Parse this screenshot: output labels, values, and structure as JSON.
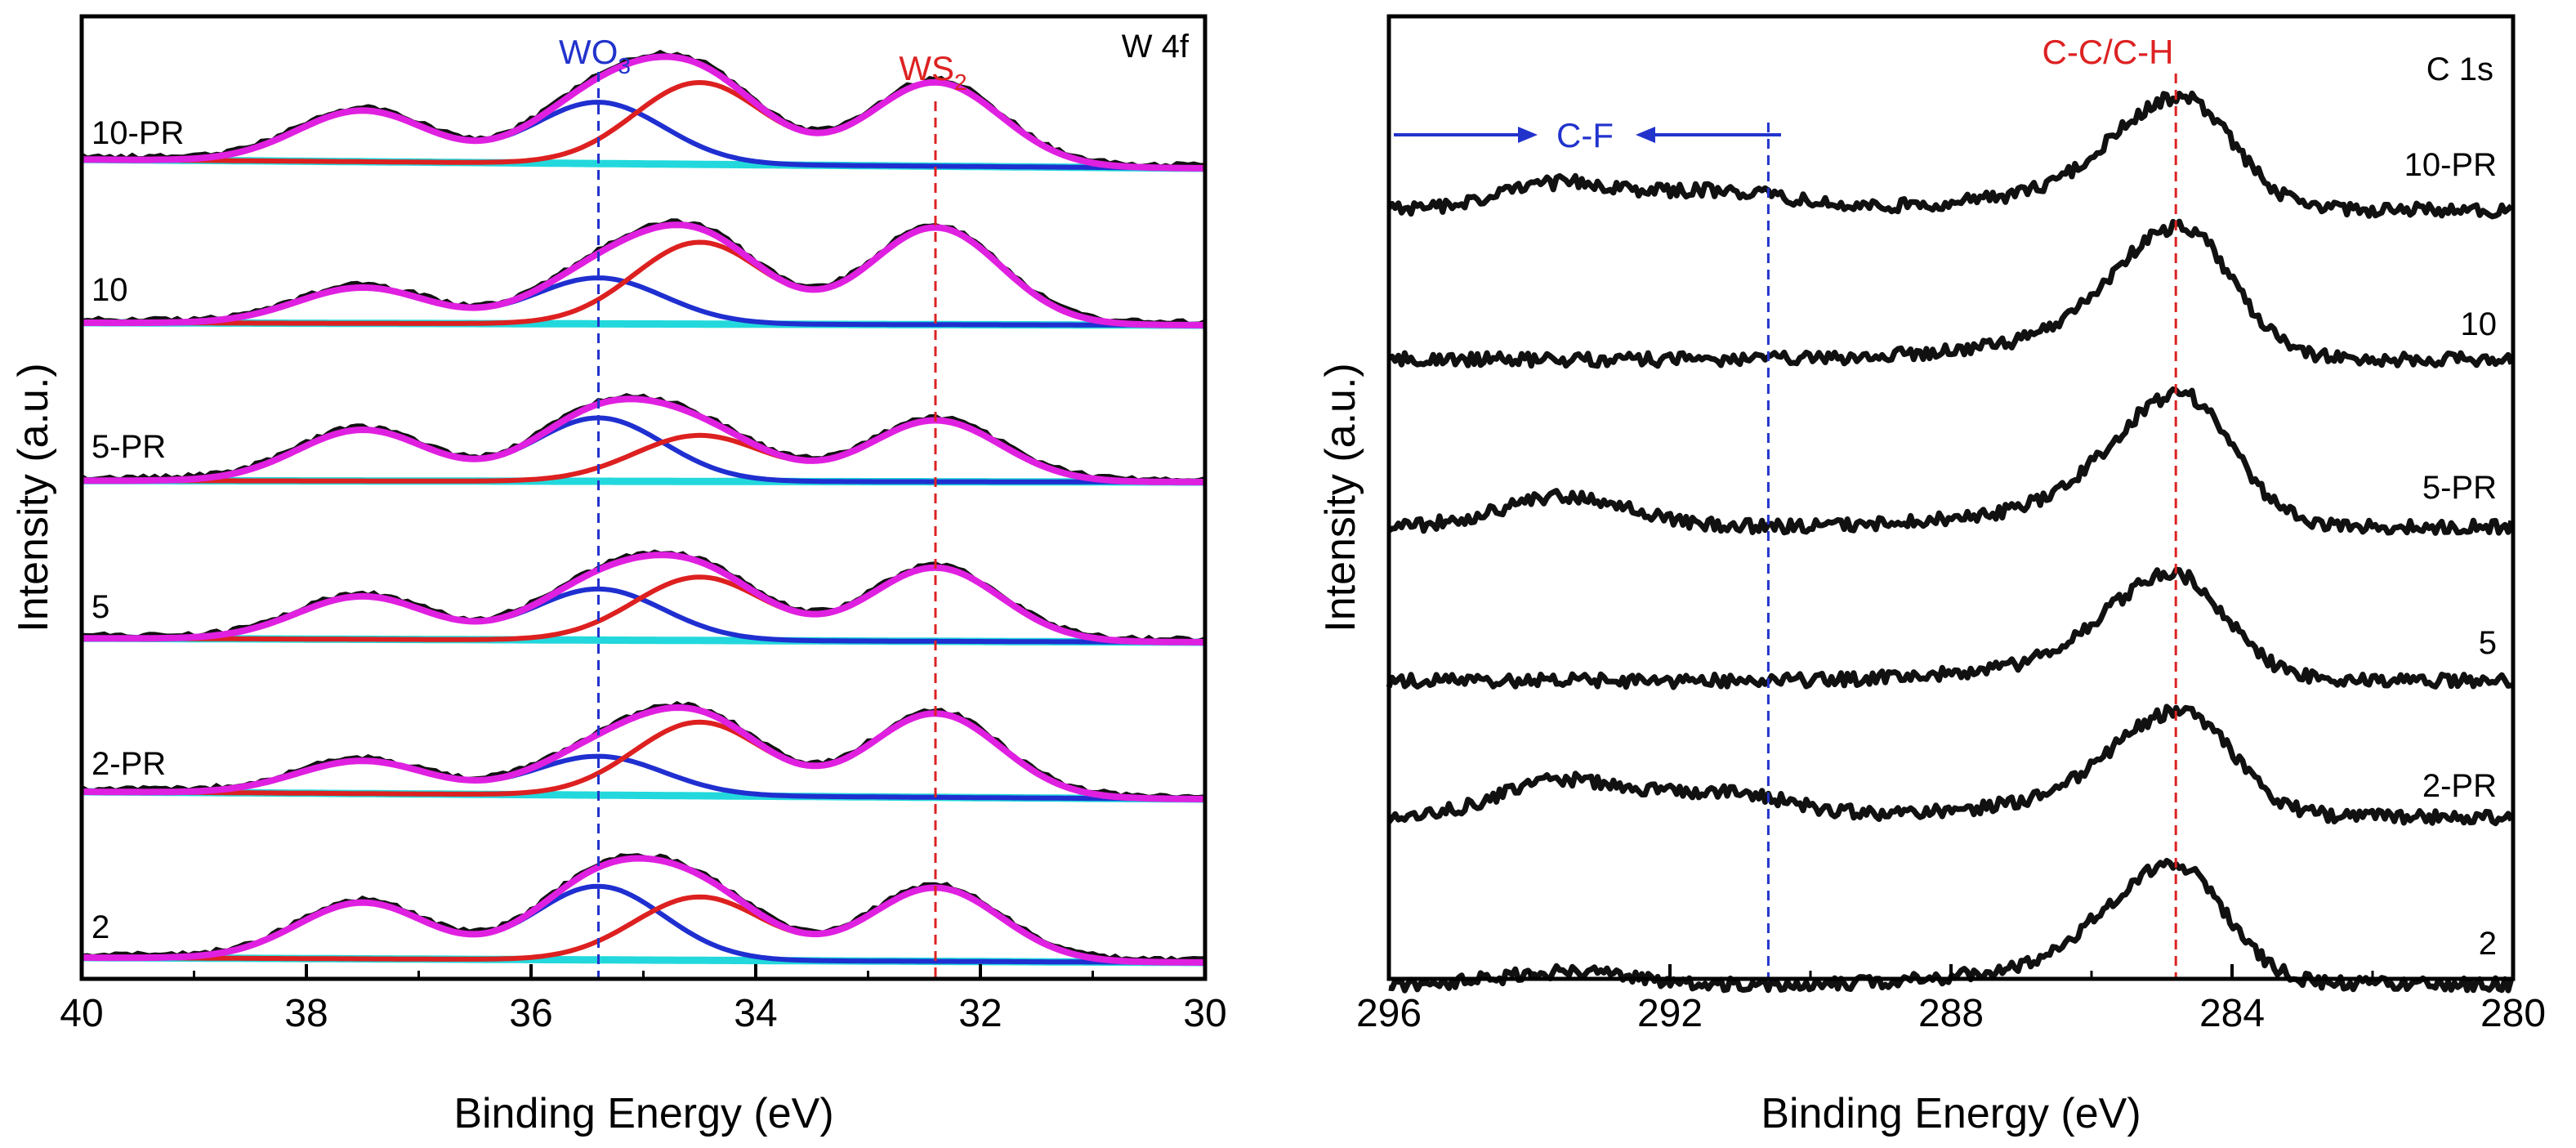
{
  "colors": {
    "spectrum": "#111111",
    "envelope": "#e020e0",
    "wo3_component": "#1f2fd0",
    "ws2_component": "#dd2020",
    "background": "#22d8dc",
    "wo3_marker": "#2233cc",
    "ws2_marker": "#dd2222",
    "cf_marker": "#2233cc"
  },
  "chart_data": [
    {
      "id": "w4f",
      "type": "line",
      "subtype": "xps-stacked-fits",
      "panel_label": "W 4f",
      "xlabel": "Binding Energy (eV)",
      "ylabel": "Intensity (a.u.)",
      "xlim": [
        40,
        30
      ],
      "x_reversed": true,
      "xticks": [
        40,
        38,
        36,
        34,
        32,
        30
      ],
      "yticks": false,
      "grid": false,
      "annotations": [
        {
          "label_main": "WO",
          "label_sub": "3",
          "energy_ev": 35.4,
          "color_key": "wo3_marker"
        },
        {
          "label_main": "WS",
          "label_sub": "2",
          "energy_ev": 32.4,
          "color_key": "ws2_marker"
        }
      ],
      "series": [
        {
          "name": "10-PR",
          "wo3_peaks": [
            {
              "center": 37.5,
              "height": 0.5
            },
            {
              "center": 35.4,
              "height": 0.6
            }
          ],
          "ws2_peaks": [
            {
              "center": 34.5,
              "height": 0.8
            },
            {
              "center": 32.4,
              "height": 0.82
            }
          ],
          "background_rise": 0.18
        },
        {
          "name": "10",
          "wo3_peaks": [
            {
              "center": 37.5,
              "height": 0.35
            },
            {
              "center": 35.4,
              "height": 0.45
            }
          ],
          "ws2_peaks": [
            {
              "center": 34.5,
              "height": 0.8
            },
            {
              "center": 32.4,
              "height": 0.95
            }
          ],
          "background_rise": 0.05
        },
        {
          "name": "5-PR",
          "wo3_peaks": [
            {
              "center": 37.5,
              "height": 0.5
            },
            {
              "center": 35.4,
              "height": 0.62
            }
          ],
          "ws2_peaks": [
            {
              "center": 34.5,
              "height": 0.45
            },
            {
              "center": 32.4,
              "height": 0.6
            }
          ],
          "background_rise": 0.03
        },
        {
          "name": "5",
          "wo3_peaks": [
            {
              "center": 37.5,
              "height": 0.42
            },
            {
              "center": 35.4,
              "height": 0.5
            }
          ],
          "ws2_peaks": [
            {
              "center": 34.5,
              "height": 0.62
            },
            {
              "center": 32.4,
              "height": 0.72
            }
          ],
          "background_rise": 0.08
        },
        {
          "name": "2-PR",
          "wo3_peaks": [
            {
              "center": 37.5,
              "height": 0.32
            },
            {
              "center": 35.4,
              "height": 0.38
            }
          ],
          "ws2_peaks": [
            {
              "center": 34.5,
              "height": 0.72
            },
            {
              "center": 32.4,
              "height": 0.82
            }
          ],
          "background_rise": 0.15
        },
        {
          "name": "2",
          "wo3_peaks": [
            {
              "center": 37.5,
              "height": 0.55
            },
            {
              "center": 35.4,
              "height": 0.72
            }
          ],
          "ws2_peaks": [
            {
              "center": 34.5,
              "height": 0.62
            },
            {
              "center": 32.4,
              "height": 0.72
            }
          ],
          "background_rise": 0.1
        }
      ]
    },
    {
      "id": "c1s",
      "type": "line",
      "subtype": "xps-stacked",
      "panel_label": "C 1s",
      "xlabel": "Binding Energy (eV)",
      "ylabel": "Intensity (a.u.)",
      "xlim": [
        296,
        280
      ],
      "x_reversed": true,
      "xticks": [
        296,
        292,
        288,
        284,
        280
      ],
      "yticks": false,
      "grid": false,
      "annotations": [
        {
          "label": "C-C/C-H",
          "energy_ev": 284.8,
          "color_key": "ws2_marker"
        },
        {
          "label": "C-F",
          "energy_ev": 290.6,
          "range_ev": [
            296,
            290.6
          ],
          "color_key": "cf_marker"
        }
      ],
      "series": [
        {
          "name": "10-PR",
          "main_peak_ev": 284.7,
          "main_peak_height": 0.85,
          "cf_peaks": [
            {
              "center": 293.5,
              "height": 0.22
            },
            {
              "center": 291.2,
              "height": 0.15
            }
          ]
        },
        {
          "name": "10",
          "main_peak_ev": 284.7,
          "main_peak_height": 1.0,
          "cf_peaks": []
        },
        {
          "name": "5-PR",
          "main_peak_ev": 284.7,
          "main_peak_height": 1.0,
          "cf_peaks": [
            {
              "center": 293.5,
              "height": 0.25
            }
          ]
        },
        {
          "name": "5",
          "main_peak_ev": 284.8,
          "main_peak_height": 0.8,
          "cf_peaks": []
        },
        {
          "name": "2-PR",
          "main_peak_ev": 284.7,
          "main_peak_height": 0.8,
          "cf_peaks": [
            {
              "center": 293.5,
              "height": 0.3
            },
            {
              "center": 291.2,
              "height": 0.2
            }
          ]
        },
        {
          "name": "2",
          "main_peak_ev": 284.8,
          "main_peak_height": 0.9,
          "cf_peaks": [
            {
              "center": 293.5,
              "height": 0.1
            }
          ]
        }
      ]
    }
  ]
}
